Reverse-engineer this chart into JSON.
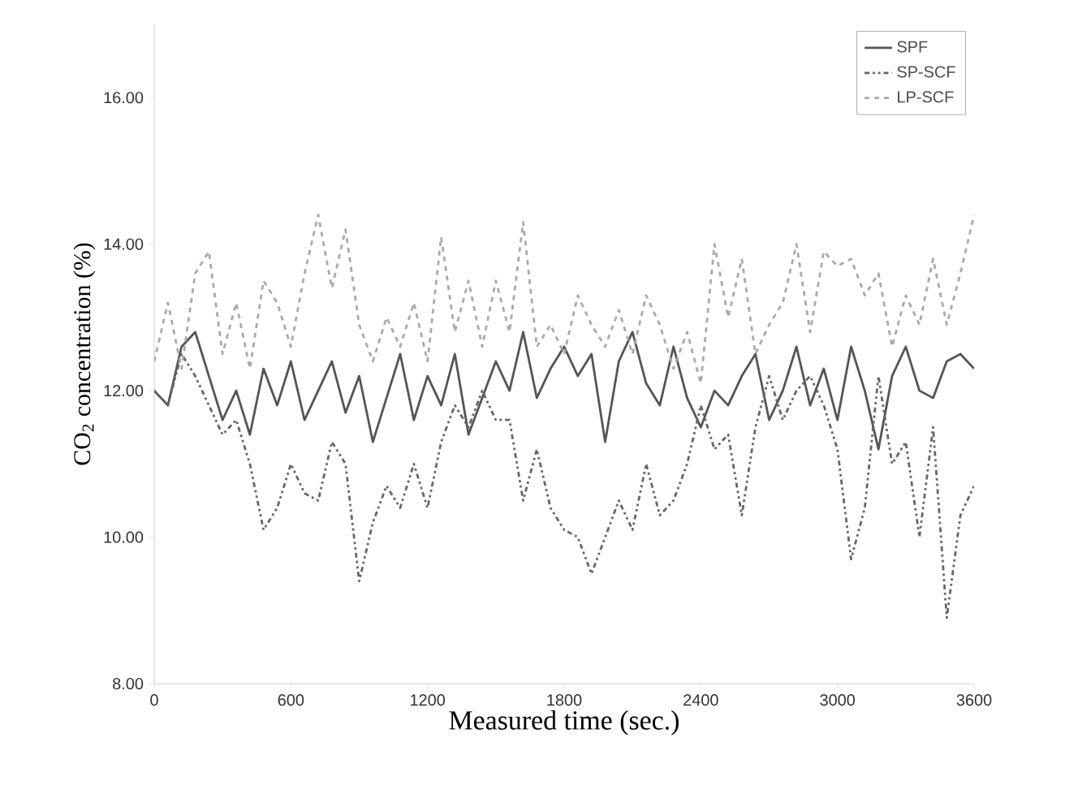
{
  "chart_data": {
    "type": "line",
    "xlabel": "Measured time (sec.)",
    "ylabel": "CO$_{2}$ concentration (%)",
    "x": [
      0,
      60,
      120,
      180,
      240,
      300,
      360,
      420,
      480,
      540,
      600,
      660,
      720,
      780,
      840,
      900,
      960,
      1020,
      1080,
      1140,
      1200,
      1260,
      1320,
      1380,
      1440,
      1500,
      1560,
      1620,
      1680,
      1740,
      1800,
      1860,
      1920,
      1980,
      2040,
      2100,
      2160,
      2220,
      2280,
      2340,
      2400,
      2460,
      2520,
      2580,
      2640,
      2700,
      2760,
      2820,
      2880,
      2940,
      3000,
      3060,
      3120,
      3180,
      3240,
      3300,
      3360,
      3420,
      3480,
      3540,
      3600
    ],
    "series": [
      {
        "name": "SPF",
        "color": "#555555",
        "line_style": "solid",
        "values": [
          12.0,
          11.8,
          12.6,
          12.8,
          12.2,
          11.6,
          12.0,
          11.4,
          12.3,
          11.8,
          12.4,
          11.6,
          12.0,
          12.4,
          11.7,
          12.2,
          11.3,
          11.9,
          12.5,
          11.6,
          12.2,
          11.8,
          12.5,
          11.4,
          11.9,
          12.4,
          12.0,
          12.8,
          11.9,
          12.3,
          12.6,
          12.2,
          12.5,
          11.3,
          12.4,
          12.8,
          12.1,
          11.8,
          12.6,
          11.9,
          11.5,
          12.0,
          11.8,
          12.2,
          12.5,
          11.6,
          12.0,
          12.6,
          11.8,
          12.3,
          11.6,
          12.6,
          12.0,
          11.2,
          12.2,
          12.6,
          12.0,
          11.9,
          12.4,
          12.5,
          12.3
        ]
      },
      {
        "name": "SP-SCF",
        "color": "#666666",
        "line_style": "dotted",
        "values": [
          12.0,
          11.8,
          12.5,
          12.2,
          11.8,
          11.4,
          11.6,
          11.0,
          10.1,
          10.4,
          11.0,
          10.6,
          10.5,
          11.3,
          11.0,
          9.4,
          10.2,
          10.7,
          10.4,
          11.0,
          10.4,
          11.3,
          11.8,
          11.5,
          12.0,
          11.6,
          11.6,
          10.5,
          11.2,
          10.4,
          10.1,
          10.0,
          9.5,
          10.0,
          10.5,
          10.1,
          11.0,
          10.3,
          10.5,
          11.0,
          11.8,
          11.2,
          11.4,
          10.3,
          11.5,
          12.2,
          11.6,
          12.0,
          12.2,
          11.8,
          11.2,
          9.7,
          10.4,
          12.2,
          11.0,
          11.3,
          10.0,
          11.5,
          8.9,
          10.3,
          10.7
        ]
      },
      {
        "name": "LP-SCF",
        "color": "#aaaaaa",
        "line_style": "dashed",
        "values": [
          12.4,
          13.2,
          12.3,
          13.6,
          13.9,
          12.5,
          13.2,
          12.3,
          13.5,
          13.2,
          12.6,
          13.6,
          14.4,
          13.4,
          14.2,
          12.9,
          12.4,
          13.0,
          12.6,
          13.2,
          12.4,
          14.1,
          12.8,
          13.5,
          12.6,
          13.5,
          12.8,
          14.3,
          12.6,
          12.9,
          12.5,
          13.3,
          12.9,
          12.6,
          13.1,
          12.5,
          13.3,
          12.9,
          12.3,
          12.8,
          12.1,
          14.0,
          13.0,
          13.8,
          12.5,
          12.9,
          13.2,
          14.0,
          12.8,
          13.9,
          13.7,
          13.8,
          13.3,
          13.6,
          12.6,
          13.3,
          12.9,
          13.8,
          12.9,
          13.6,
          14.4
        ]
      }
    ],
    "xlim": [
      0,
      3600
    ],
    "ylim": [
      8,
      17
    ],
    "xticks": [
      0,
      600,
      1200,
      1800,
      2400,
      3000,
      3600
    ],
    "yticks": [
      {
        "value": 8,
        "label": "8.00"
      },
      {
        "value": 10,
        "label": "10.00"
      },
      {
        "value": 12,
        "label": "12.00"
      },
      {
        "value": 14,
        "label": "14.00"
      },
      {
        "value": 16,
        "label": "16.00"
      }
    ],
    "grid": false,
    "legend": "top right"
  }
}
